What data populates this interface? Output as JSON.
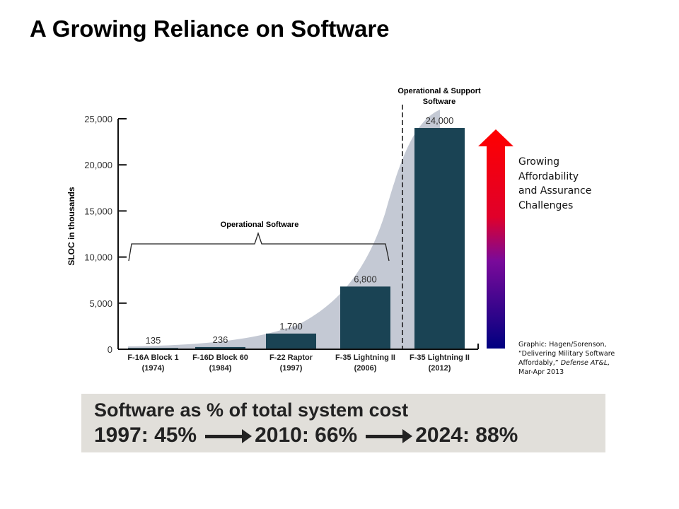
{
  "title": "A Growing Reliance on Software",
  "chart_data": {
    "type": "bar",
    "categories": [
      "F-16A Block 1 (1974)",
      "F-16D Block 60 (1984)",
      "F-22 Raptor (1997)",
      "F-35 Lightning II (2006)",
      "F-35 Lightning II (2012)"
    ],
    "category_lines": [
      [
        "F-16A Block 1",
        "(1974)"
      ],
      [
        "F-16D Block 60",
        "(1984)"
      ],
      [
        "F-22 Raptor",
        "(1997)"
      ],
      [
        "F-35 Lightning II",
        "(2006)"
      ],
      [
        "F-35 Lightning II",
        "(2012)"
      ]
    ],
    "values": [
      135,
      236,
      1700,
      6800,
      24000
    ],
    "data_labels": [
      "135",
      "236",
      "1,700",
      "6,800",
      "24,000"
    ],
    "ylabel": "SLOC in thousands",
    "ylim": [
      0,
      25000
    ],
    "yticks": [
      0,
      5000,
      10000,
      15000,
      20000,
      25000
    ],
    "ytick_labels": [
      "0",
      "5,000",
      "10,000",
      "15,000",
      "20,000",
      "25,000"
    ],
    "annotations": {
      "operational": "Operational Software",
      "support_line1": "Operational & Support",
      "support_line2": "Software"
    },
    "bar_color": "#1a4354",
    "area_color": "#c4c9d4",
    "grid": false
  },
  "arrow": {
    "label_lines": [
      "Growing",
      "Affordability",
      "and Assurance",
      "Challenges"
    ],
    "color_top": "#ff0000",
    "color_bottom": "#000080"
  },
  "credit": {
    "line1": "Graphic: Hagen/Sorenson,",
    "line2": "“Delivering Military Software",
    "line3a": "Affordably,”",
    "line3b": "Defense AT&L,",
    "line4": "Mar-Apr 2013"
  },
  "cost": {
    "heading": "Software as % of total system cost",
    "items": [
      "1997: 45%",
      "2010: 66%",
      "2024: 88%"
    ]
  }
}
